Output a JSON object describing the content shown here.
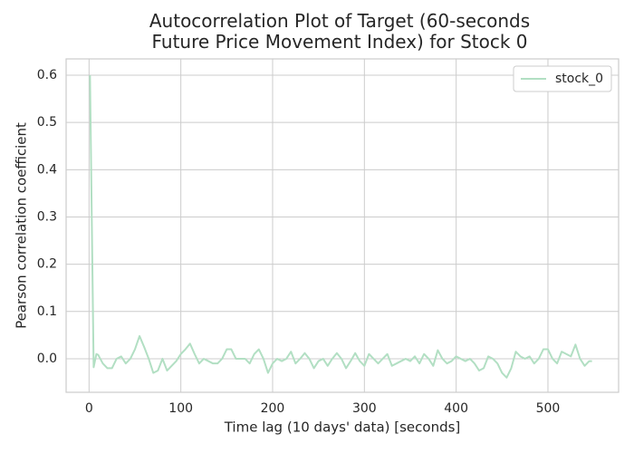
{
  "chart_data": {
    "type": "line",
    "title": "Autocorrelation Plot of Target (60-seconds\n Future Price Movement Index) for Stock 0",
    "xlabel": "Time lag (10 days' data) [seconds]",
    "ylabel": "Pearson correlation coefficient",
    "x": [
      1,
      5,
      8,
      10,
      15,
      20,
      25,
      30,
      35,
      40,
      45,
      50,
      55,
      60,
      65,
      70,
      75,
      80,
      85,
      90,
      95,
      100,
      105,
      110,
      115,
      120,
      125,
      130,
      135,
      140,
      145,
      150,
      155,
      160,
      165,
      170,
      175,
      180,
      185,
      190,
      195,
      200,
      205,
      210,
      215,
      220,
      225,
      230,
      235,
      240,
      245,
      250,
      255,
      260,
      265,
      270,
      275,
      280,
      285,
      290,
      295,
      300,
      305,
      310,
      315,
      320,
      325,
      330,
      335,
      340,
      345,
      350,
      355,
      360,
      365,
      370,
      375,
      380,
      385,
      390,
      395,
      400,
      405,
      410,
      415,
      420,
      425,
      430,
      435,
      440,
      445,
      450,
      455,
      460,
      465,
      470,
      475,
      480,
      485,
      490,
      495,
      500,
      505,
      510,
      515,
      520,
      525,
      530,
      535,
      540,
      545,
      548
    ],
    "series": [
      {
        "name": "stock_0",
        "color": "#b2dfc3",
        "values": [
          0.6,
          -0.018,
          0.01,
          0.008,
          -0.01,
          -0.02,
          -0.02,
          0.0,
          0.005,
          -0.01,
          0.0,
          0.02,
          0.048,
          0.025,
          0.0,
          -0.03,
          -0.025,
          0.0,
          -0.025,
          -0.015,
          -0.005,
          0.01,
          0.02,
          0.032,
          0.01,
          -0.01,
          0.0,
          -0.005,
          -0.01,
          -0.01,
          0.0,
          0.02,
          0.02,
          0.0,
          0.0,
          0.0,
          -0.01,
          0.01,
          0.02,
          0.0,
          -0.03,
          -0.01,
          0.0,
          -0.005,
          0.0,
          0.015,
          -0.01,
          0.0,
          0.012,
          0.0,
          -0.02,
          -0.005,
          0.0,
          -0.015,
          0.0,
          0.012,
          0.0,
          -0.02,
          -0.005,
          0.012,
          -0.005,
          -0.015,
          0.01,
          0.0,
          -0.01,
          0.0,
          0.01,
          -0.015,
          -0.01,
          -0.005,
          0.0,
          -0.005,
          0.005,
          -0.01,
          0.01,
          0.0,
          -0.015,
          0.018,
          0.0,
          -0.01,
          -0.005,
          0.005,
          0.0,
          -0.005,
          0.0,
          -0.01,
          -0.025,
          -0.02,
          0.005,
          0.0,
          -0.01,
          -0.03,
          -0.04,
          -0.02,
          0.015,
          0.005,
          0.0,
          0.005,
          -0.01,
          0.0,
          0.02,
          0.02,
          0.0,
          -0.01,
          0.015,
          0.01,
          0.005,
          0.03,
          0.0,
          -0.015,
          -0.005,
          -0.005
        ]
      }
    ],
    "xlim": [
      -25,
      577
    ],
    "ylim": [
      -0.071,
      0.6345
    ],
    "xticks": [
      0,
      100,
      200,
      300,
      400,
      500
    ],
    "yticks": [
      {
        "value": 0,
        "label": "0.0"
      },
      0.1,
      0.2,
      0.3,
      0.4,
      0.5,
      0.6
    ],
    "grid": true,
    "legend": "upper right"
  }
}
